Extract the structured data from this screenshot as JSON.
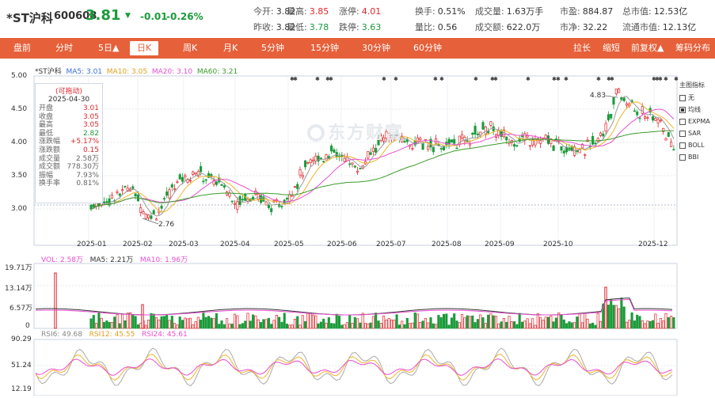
{
  "stock": {
    "name": "*ST沪科",
    "code": "600608",
    "price": "3.81",
    "arrow": "▼",
    "change": "-0.01",
    "change_pct": "-0.26%"
  },
  "quotes": [
    {
      "label": "今开:",
      "value": "3.82",
      "color": "dark"
    },
    {
      "label": "最高:",
      "value": "3.85",
      "color": "red"
    },
    {
      "label": "涨停:",
      "value": "4.01",
      "color": "red"
    },
    {
      "label": "换手:",
      "value": "0.51%",
      "color": "dark"
    },
    {
      "label": "成交量:",
      "value": "1.63万手",
      "color": "dark"
    },
    {
      "label": "市盈:",
      "value": "884.87",
      "color": "dark"
    },
    {
      "label": "总市值:",
      "value": "12.53亿",
      "color": "dark"
    },
    {
      "label": "昨收:",
      "value": "3.82",
      "color": "dark"
    },
    {
      "label": "最低:",
      "value": "3.78",
      "color": "green"
    },
    {
      "label": "跌停:",
      "value": "3.63",
      "color": "green"
    },
    {
      "label": "量比:",
      "value": "0.56",
      "color": "dark"
    },
    {
      "label": "成交额:",
      "value": "622.0万",
      "color": "dark"
    },
    {
      "label": "市净:",
      "value": "32.22",
      "color": "dark"
    },
    {
      "label": "流通市值:",
      "value": "12.13亿",
      "color": "dark"
    }
  ],
  "toolbar": {
    "items": [
      "盘前",
      "分时",
      "5日▲",
      "日K",
      "周K",
      "月K",
      "5分钟",
      "15分钟",
      "30分钟",
      "60分钟",
      "拉长",
      "缩短",
      "前复权▲",
      "筹码分布"
    ],
    "active": "日K"
  },
  "kline_legend": {
    "name": "*ST沪科",
    "ma5": "MA5: 3.01",
    "ma10": "MA10: 3.05",
    "ma20": "MA20: 3.10",
    "ma60": "MA60: 3.21"
  },
  "vol_legend": {
    "vol": "VOL: 2.58万",
    "ma5": "MA5: 2.21万",
    "ma10": "MA10: 1.96万"
  },
  "rsi_legend": {
    "rsi6": "RSI6: 49.68",
    "rsi12": "RSI12: 45.55",
    "rsi24": "RSI24: 45.61"
  },
  "tooltip": {
    "title": "(可拖动)",
    "date": "2025-04-30",
    "rows": [
      {
        "k": "开盘",
        "v": "3.01",
        "c": "#e0262b"
      },
      {
        "k": "收盘",
        "v": "3.05",
        "c": "#e0262b"
      },
      {
        "k": "最高",
        "v": "3.05",
        "c": "#e0262b"
      },
      {
        "k": "最低",
        "v": "2.82",
        "c": "#1a9b3a"
      },
      {
        "k": "涨跌幅",
        "v": "+5.17%",
        "c": "#e0262b"
      },
      {
        "k": "涨跌额",
        "v": "0.15",
        "c": "#e0262b"
      },
      {
        "k": "成交量",
        "v": "2.58万",
        "c": "#666"
      },
      {
        "k": "成交额",
        "v": "778.30万",
        "c": "#666"
      },
      {
        "k": "振幅",
        "v": "7.93%",
        "c": "#666"
      },
      {
        "k": "换手率",
        "v": "0.81%",
        "c": "#666"
      }
    ]
  },
  "indicators": {
    "title": "主图指标",
    "items": [
      {
        "label": "无",
        "checked": false
      },
      {
        "label": "均线",
        "checked": true
      },
      {
        "label": "EXPMA",
        "checked": false
      },
      {
        "label": "SAR",
        "checked": false
      },
      {
        "label": "BOLL",
        "checked": false
      },
      {
        "label": "BBI",
        "checked": false
      }
    ]
  },
  "watermark": "东方财富",
  "price_axis": [
    "5.00",
    "4.50",
    "4.00",
    "3.50",
    "3.00"
  ],
  "vol_axis": [
    "19.71万",
    "13.14万",
    "6.57万",
    "0"
  ],
  "rsi_axis": [
    "90.29",
    "51.24",
    "12.19"
  ],
  "x_axis": [
    "2025-01",
    "2025-02",
    "2025-03",
    "2025-04",
    "2025-05",
    "2025-06",
    "2025-07",
    "2025-08",
    "2025-09",
    "2025-10",
    "2025-12"
  ],
  "annotations": {
    "low": "2.76",
    "high": "4.83"
  },
  "colors": {
    "up": "#e0262b",
    "down": "#1a9b3a",
    "accent": "#e6603a",
    "ma5": "#999999",
    "ma10": "#f0b52c",
    "ma20": "#e84fd1",
    "ma60": "#3a9b2a"
  }
}
